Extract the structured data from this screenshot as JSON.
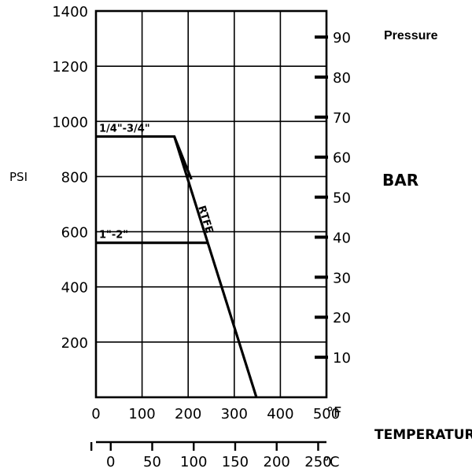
{
  "chart_data": {
    "type": "line",
    "title": "Pressure",
    "left_axis": {
      "label": "PSI",
      "ticks": [
        200,
        400,
        600,
        800,
        1000,
        1200,
        1400
      ],
      "range": [
        0,
        1400
      ]
    },
    "right_axis": {
      "label": "BAR",
      "ticks": [
        10,
        20,
        30,
        40,
        50,
        60,
        70,
        80,
        90
      ],
      "range": [
        0,
        96.5
      ]
    },
    "x_axis_f": {
      "ticks": [
        0,
        100,
        200,
        300,
        400,
        500
      ],
      "range": [
        0,
        500
      ],
      "unit": "°F"
    },
    "x_axis_c": {
      "ticks": [
        0,
        50,
        100,
        150,
        200,
        250
      ],
      "unit": "°C"
    },
    "xlabel": "TEMPERATURE",
    "grid": true,
    "series": [
      {
        "name": "1/4\"-3/4\"",
        "x": [
          0,
          170,
          207
        ],
        "y": [
          945,
          945,
          790
        ]
      },
      {
        "name": "1\"-2\"",
        "x": [
          0,
          235,
          243
        ],
        "y": [
          560,
          560,
          560
        ]
      },
      {
        "name": "RTFE",
        "x": [
          170,
          348
        ],
        "y": [
          945,
          0
        ]
      }
    ]
  }
}
